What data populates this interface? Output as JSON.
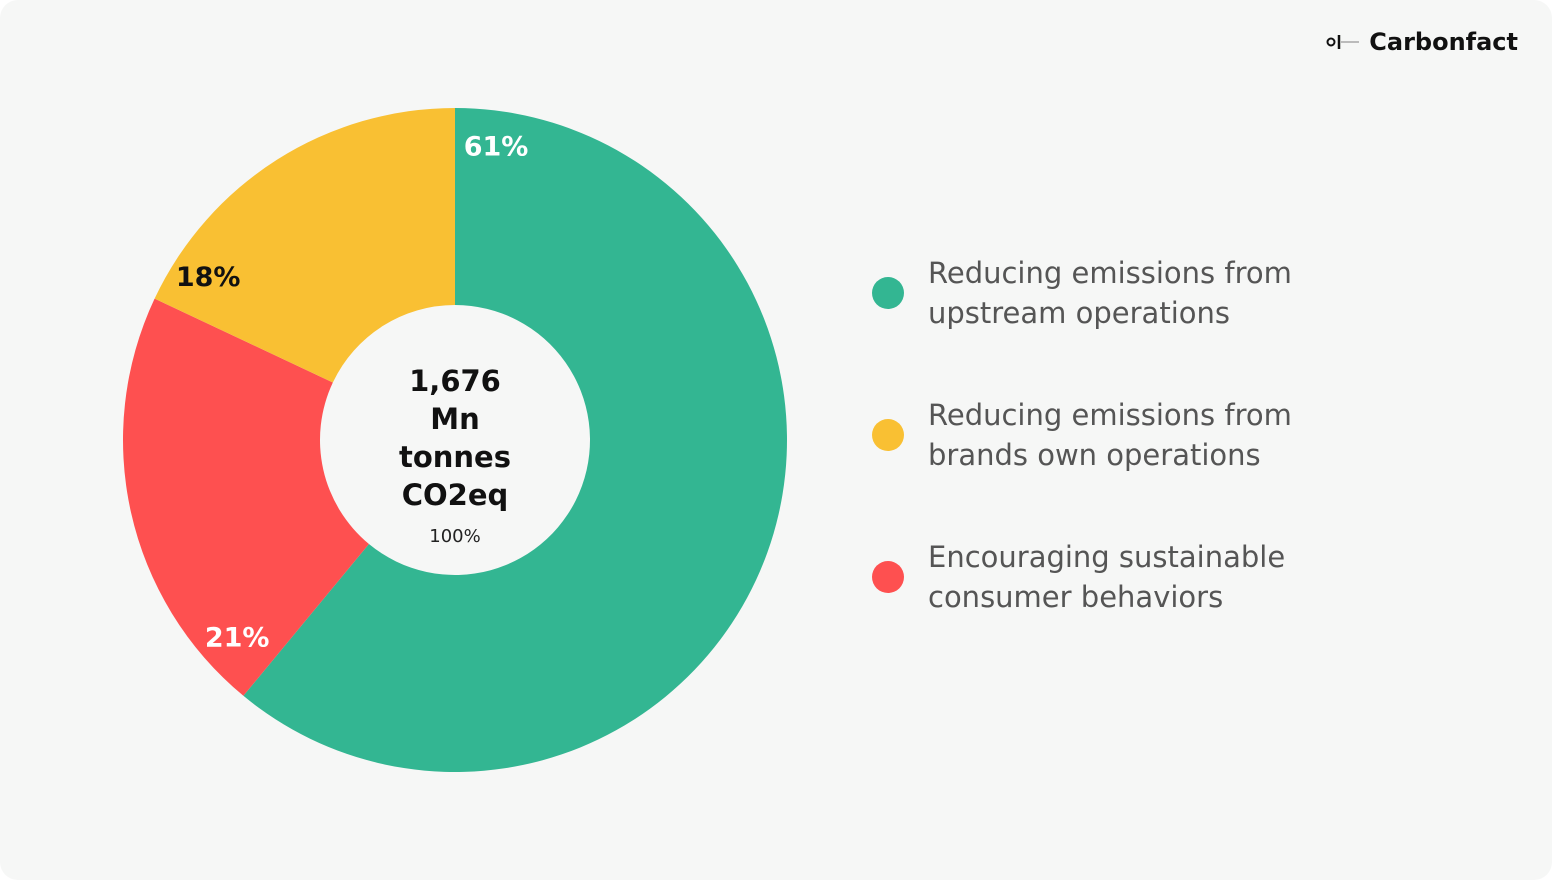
{
  "brand": "Carbonfact",
  "chart_data": {
    "type": "donut",
    "categories": [
      "Reducing emissions from upstream operations",
      "Reducing emissions from brands own operations",
      "Encouraging sustainable consumer behaviors"
    ],
    "values": [
      61,
      18,
      21
    ],
    "value_labels": [
      "61%",
      "18%",
      "21%"
    ],
    "colors": [
      "#33b692",
      "#f9c033",
      "#fe5050"
    ],
    "center_title": "1,676 Mn tonnes CO2eq",
    "center_subtitle": "100%"
  }
}
